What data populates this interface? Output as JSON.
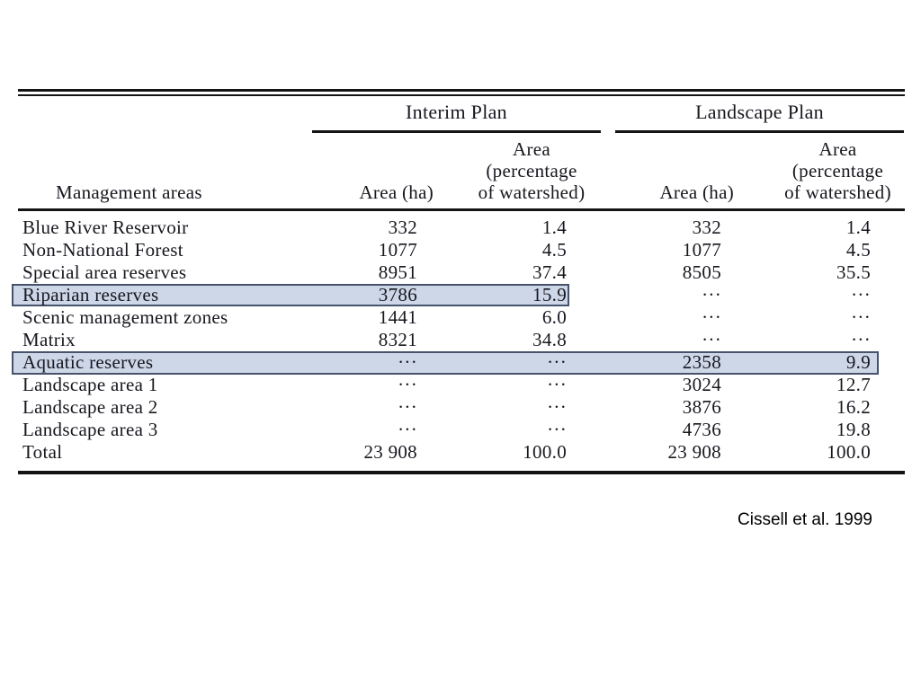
{
  "citation": "Cissell et al. 1999",
  "table": {
    "plan_groups": [
      "Interim Plan",
      "Landscape Plan"
    ],
    "column_headers": {
      "management_areas": "Management areas",
      "area_ha": "Area (ha)",
      "area_pct_line1": "Area",
      "area_pct_line2": "(percentage",
      "area_pct_line3": "of watershed)"
    },
    "rows": [
      {
        "label": "Blue River Reservoir",
        "interim_ha": "332",
        "interim_pct": "1.4",
        "landscape_ha": "332",
        "landscape_pct": "1.4"
      },
      {
        "label": "Non-National Forest",
        "interim_ha": "1077",
        "interim_pct": "4.5",
        "landscape_ha": "1077",
        "landscape_pct": "4.5"
      },
      {
        "label": "Special area reserves",
        "interim_ha": "8951",
        "interim_pct": "37.4",
        "landscape_ha": "8505",
        "landscape_pct": "35.5"
      },
      {
        "label": "Riparian reserves",
        "interim_ha": "3786",
        "interim_pct": "15.9",
        "landscape_ha": "···",
        "landscape_pct": "···"
      },
      {
        "label": "Scenic management zones",
        "interim_ha": "1441",
        "interim_pct": "6.0",
        "landscape_ha": "···",
        "landscape_pct": "···"
      },
      {
        "label": "Matrix",
        "interim_ha": "8321",
        "interim_pct": "34.8",
        "landscape_ha": "···",
        "landscape_pct": "···"
      },
      {
        "label": "Aquatic reserves",
        "interim_ha": "···",
        "interim_pct": "···",
        "landscape_ha": "2358",
        "landscape_pct": "9.9"
      },
      {
        "label": "Landscape area 1",
        "interim_ha": "···",
        "interim_pct": "···",
        "landscape_ha": "3024",
        "landscape_pct": "12.7"
      },
      {
        "label": "Landscape area 2",
        "interim_ha": "···",
        "interim_pct": "···",
        "landscape_ha": "3876",
        "landscape_pct": "16.2"
      },
      {
        "label": "Landscape area 3",
        "interim_ha": "···",
        "interim_pct": "···",
        "landscape_ha": "4736",
        "landscape_pct": "19.8"
      }
    ],
    "total_row": {
      "label": "Total",
      "interim_ha": "23 908",
      "interim_pct": "100.0",
      "landscape_ha": "23 908",
      "landscape_pct": "100.0"
    }
  },
  "theme": {
    "highlight_fill": "#cdd7e8",
    "highlight_border": "#47526b",
    "rule_color": "#141414",
    "text_color": "#17171f"
  },
  "chart_data": {
    "type": "table",
    "title": "Management area allocations under the Interim Plan and Landscape Plan",
    "columns": [
      "Management areas",
      "Interim Plan Area (ha)",
      "Interim Plan Area (percentage of watershed)",
      "Landscape Plan Area (ha)",
      "Landscape Plan Area (percentage of watershed)"
    ],
    "rows": [
      [
        "Blue River Reservoir",
        332,
        1.4,
        332,
        1.4
      ],
      [
        "Non-National Forest",
        1077,
        4.5,
        1077,
        4.5
      ],
      [
        "Special area reserves",
        8951,
        37.4,
        8505,
        35.5
      ],
      [
        "Riparian reserves",
        3786,
        15.9,
        null,
        null
      ],
      [
        "Scenic management zones",
        1441,
        6.0,
        null,
        null
      ],
      [
        "Matrix",
        8321,
        34.8,
        null,
        null
      ],
      [
        "Aquatic reserves",
        null,
        null,
        2358,
        9.9
      ],
      [
        "Landscape area 1",
        null,
        null,
        3024,
        12.7
      ],
      [
        "Landscape area 2",
        null,
        null,
        3876,
        16.2
      ],
      [
        "Landscape area 3",
        null,
        null,
        4736,
        19.8
      ],
      [
        "Total",
        23908,
        100.0,
        23908,
        100.0
      ]
    ],
    "highlighted_rows": [
      "Riparian reserves (Interim Plan columns)",
      "Aquatic reserves (full row)"
    ],
    "source": "Cissell et al. 1999"
  }
}
